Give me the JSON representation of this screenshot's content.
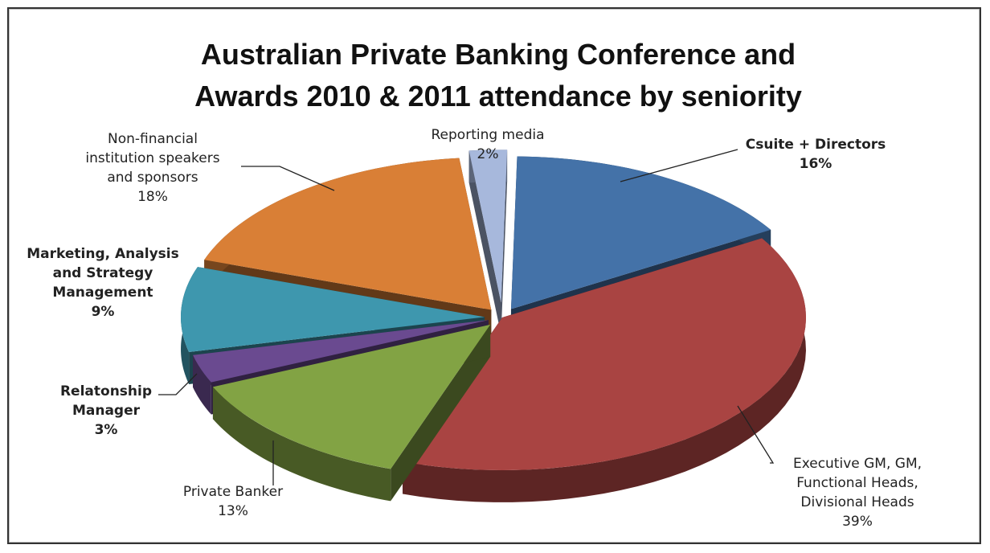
{
  "chart_data": {
    "type": "pie",
    "title": "Australian Private Banking Conference and Awards 2010 & 2011 attendance by seniority",
    "title_lines": [
      "Australian Private Banking Conference and",
      "Awards 2010 & 2011 attendance by seniority"
    ],
    "slices": [
      {
        "name": "Csuite + Directors",
        "label_lines": [
          "Csuite + Directors"
        ],
        "percent_label": "16%",
        "value": 16,
        "color": "#4472A8",
        "bold": true
      },
      {
        "name": "Executive GM, GM, Functional Heads, Divisional Heads",
        "label_lines": [
          "Executive GM, GM,",
          "Functional Heads,",
          "Divisional Heads"
        ],
        "percent_label": "39%",
        "value": 39,
        "color": "#A94442",
        "bold": false
      },
      {
        "name": "Private Banker",
        "label_lines": [
          "Private Banker"
        ],
        "percent_label": "13%",
        "value": 13,
        "color": "#82A344",
        "bold": false
      },
      {
        "name": "Relatonship Manager",
        "label_lines": [
          "Relatonship",
          "Manager"
        ],
        "percent_label": "3%",
        "value": 3,
        "color": "#6A4A90",
        "bold": true
      },
      {
        "name": "Marketing, Analysis and Strategy Management",
        "label_lines": [
          "Marketing, Analysis",
          "and Strategy",
          "Management"
        ],
        "percent_label": "9%",
        "value": 9,
        "color": "#3E97AE",
        "bold": true
      },
      {
        "name": "Non-financial institution speakers and sponsors",
        "label_lines": [
          "Non-financial",
          "institution speakers",
          "and sponsors"
        ],
        "percent_label": "18%",
        "value": 18,
        "color": "#D97F36",
        "bold": false
      },
      {
        "name": "Reporting media",
        "label_lines": [
          "Reporting media"
        ],
        "percent_label": "2%",
        "value": 2,
        "color": "#A7B8DC",
        "bold": false
      }
    ],
    "legend": "none"
  }
}
